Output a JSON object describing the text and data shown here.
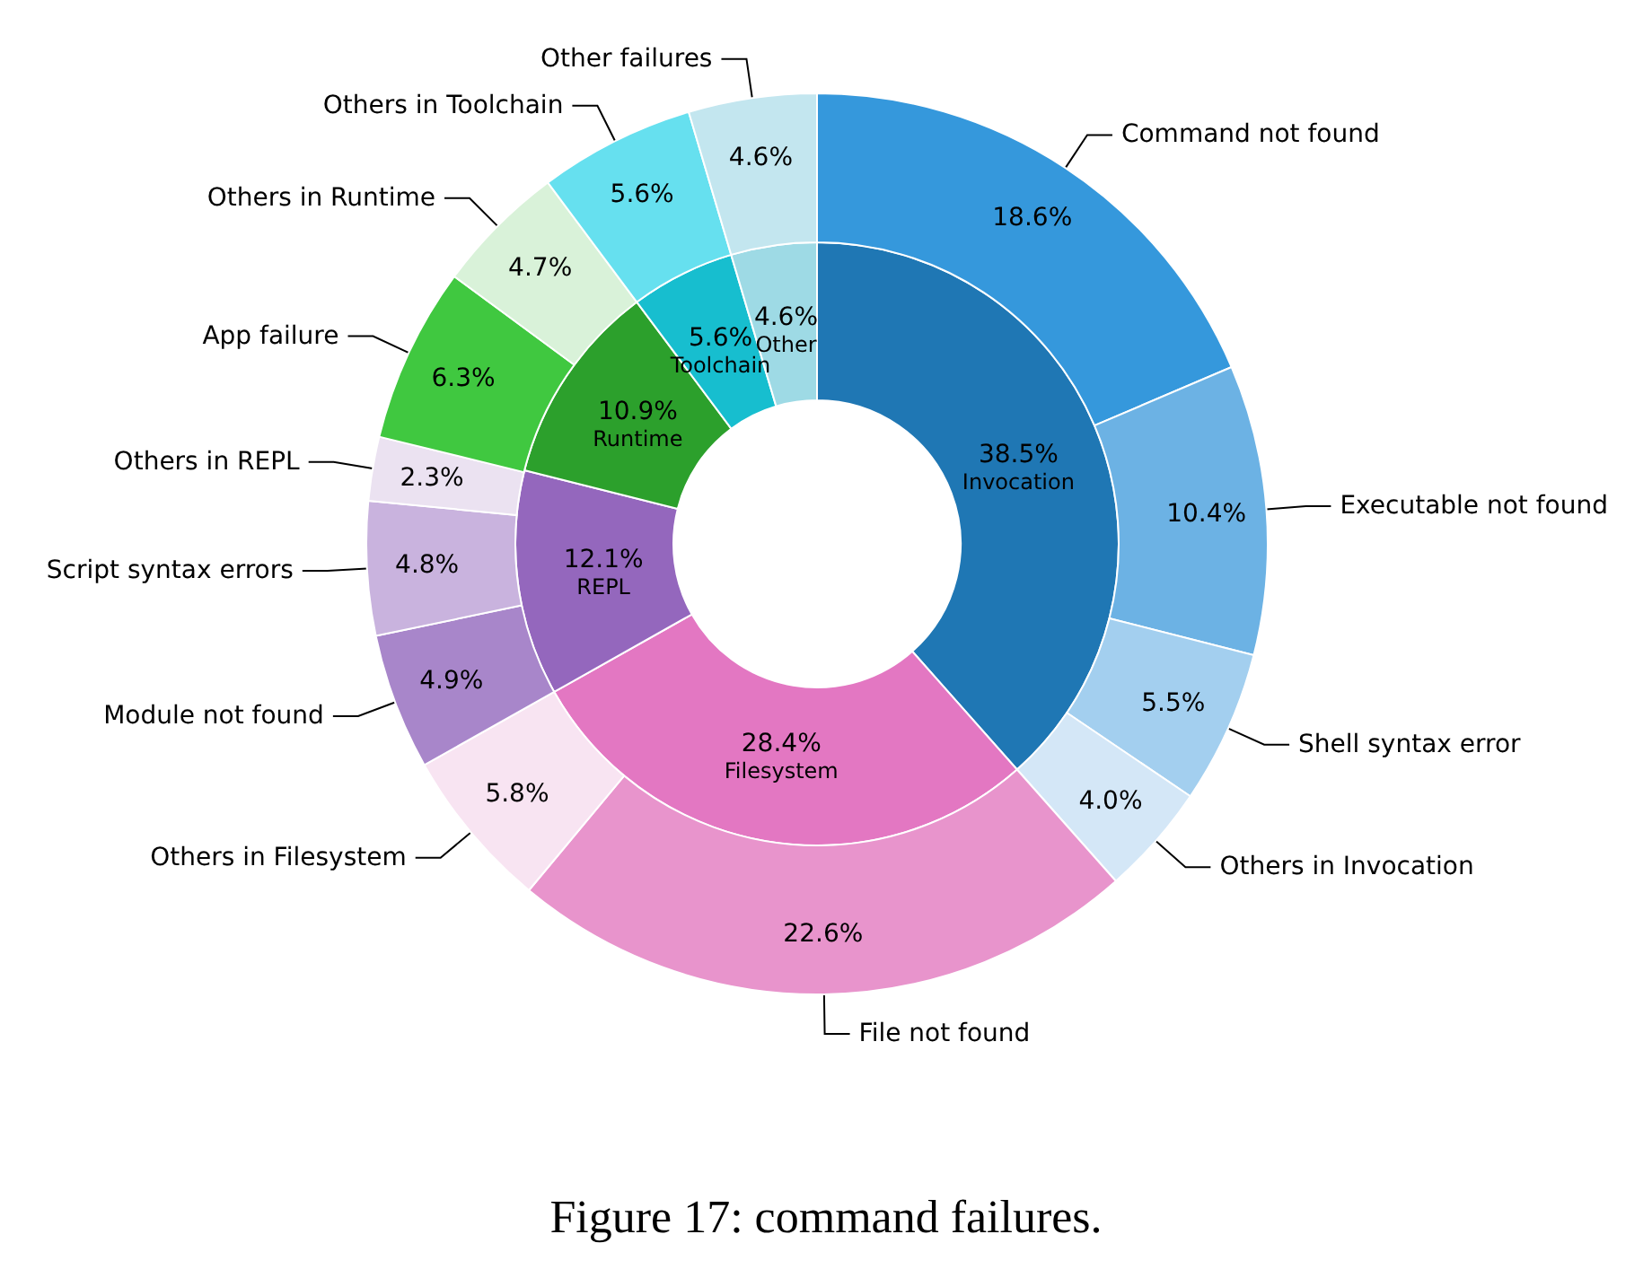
{
  "chart_data": [
    {
      "type": "donut",
      "title": "Figure 17: command failures.",
      "legend": false,
      "categories": [
        "Invocation",
        "Filesystem",
        "REPL",
        "Runtime",
        "Toolchain",
        "Other"
      ],
      "values": [
        38.5,
        28.4,
        12.1,
        10.9,
        5.6,
        4.6
      ],
      "value_labels": [
        "38.5%",
        "28.4%",
        "12.1%",
        "10.9%",
        "5.6%",
        "4.6%"
      ],
      "colors": [
        "#1f77b4",
        "#e377c2",
        "#9467bd",
        "#2ca02c",
        "#17becf",
        "#9edae5"
      ]
    },
    {
      "type": "donut",
      "legend": false,
      "categories": [
        "Command not found",
        "Executable not found",
        "Shell syntax error",
        "Others in Invocation",
        "File not found",
        "Others in Filesystem",
        "Module not found",
        "Script syntax errors",
        "Others in REPL",
        "App failure",
        "Others in Runtime",
        "Others in Toolchain",
        "Other failures"
      ],
      "values": [
        18.6,
        10.4,
        5.5,
        4.0,
        22.6,
        5.8,
        4.9,
        4.8,
        2.3,
        6.3,
        4.7,
        5.6,
        4.6
      ],
      "value_labels": [
        "18.6%",
        "10.4%",
        "5.5%",
        "4.0%",
        "22.6%",
        "5.8%",
        "4.9%",
        "4.8%",
        "2.3%",
        "6.3%",
        "4.7%",
        "5.6%",
        "4.6%"
      ],
      "colors": [
        "#3598dc",
        "#6cb2e4",
        "#a3cfef",
        "#d4e7f7",
        "#e894cc",
        "#f8e4f2",
        "#a886ca",
        "#c9b3de",
        "#ebe2f1",
        "#40c840",
        "#d9f2d9",
        "#66e0ef",
        "#c3e6ef"
      ]
    }
  ]
}
